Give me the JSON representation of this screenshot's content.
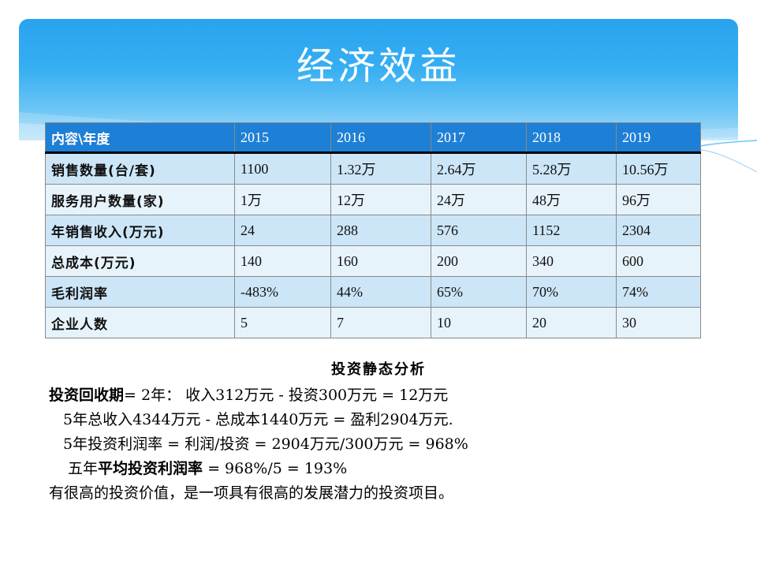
{
  "slide": {
    "title": "经济效益"
  },
  "table": {
    "corner": "内容\\年度",
    "years": [
      "2015",
      "2016",
      "2017",
      "2018",
      "2019"
    ],
    "rows": [
      {
        "label": "销售数量(台/套)",
        "values": [
          "1100",
          "1.32万",
          "2.64万",
          "5.28万",
          "10.56万"
        ]
      },
      {
        "label": "服务用户数量(家)",
        "values": [
          "1万",
          "12万",
          "24万",
          "48万",
          "96万"
        ]
      },
      {
        "label": "年销售收入(万元)",
        "values": [
          "24",
          "288",
          "576",
          "1152",
          "2304"
        ]
      },
      {
        "label": "总成本(万元)",
        "values": [
          "140",
          "160",
          "200",
          "340",
          "600"
        ]
      },
      {
        "label": "毛利润率",
        "values": [
          "-483%",
          "44%",
          "65%",
          "70%",
          "74%"
        ]
      },
      {
        "label": "企业人数",
        "values": [
          "5",
          "7",
          "10",
          "20",
          "30"
        ]
      }
    ]
  },
  "analysis": {
    "heading": "投资静态分析",
    "line1_label": "投资回收期",
    "line1_text": "= 2年：  收入312万元 - 投资300万元 = 12万元",
    "line2": "5年总收入4344万元 - 总成本1440万元 = 盈利2904万元.",
    "line3": "5年投资利润率 = 利润/投资 = 2904万元/300万元 = 968%",
    "line4_prefix": "五年",
    "line4_label": "平均投资利润率",
    "line4_text": " = 968%/5 = 193%",
    "line5": "有很高的投资价值，是一项具有很高的发展潜力的投资项目。"
  },
  "colors": {
    "banner_top": "#2aa3ef",
    "table_header": "#1e7fd6",
    "row_odd": "#cce6f7",
    "row_even": "#e7f3fb"
  }
}
